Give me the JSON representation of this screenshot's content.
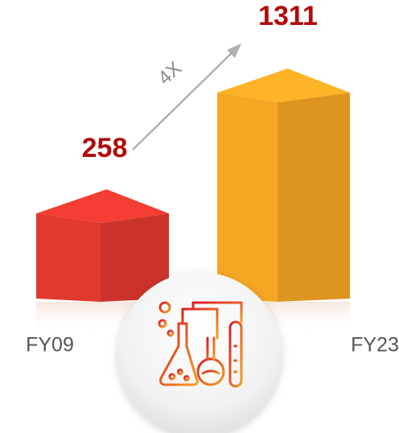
{
  "chart_data": {
    "type": "bar",
    "categories": [
      "FY09",
      "FY23"
    ],
    "values": [
      258,
      1311
    ],
    "colors": [
      "#e2392f",
      "#f5a623"
    ],
    "annotation": "4X"
  }
}
